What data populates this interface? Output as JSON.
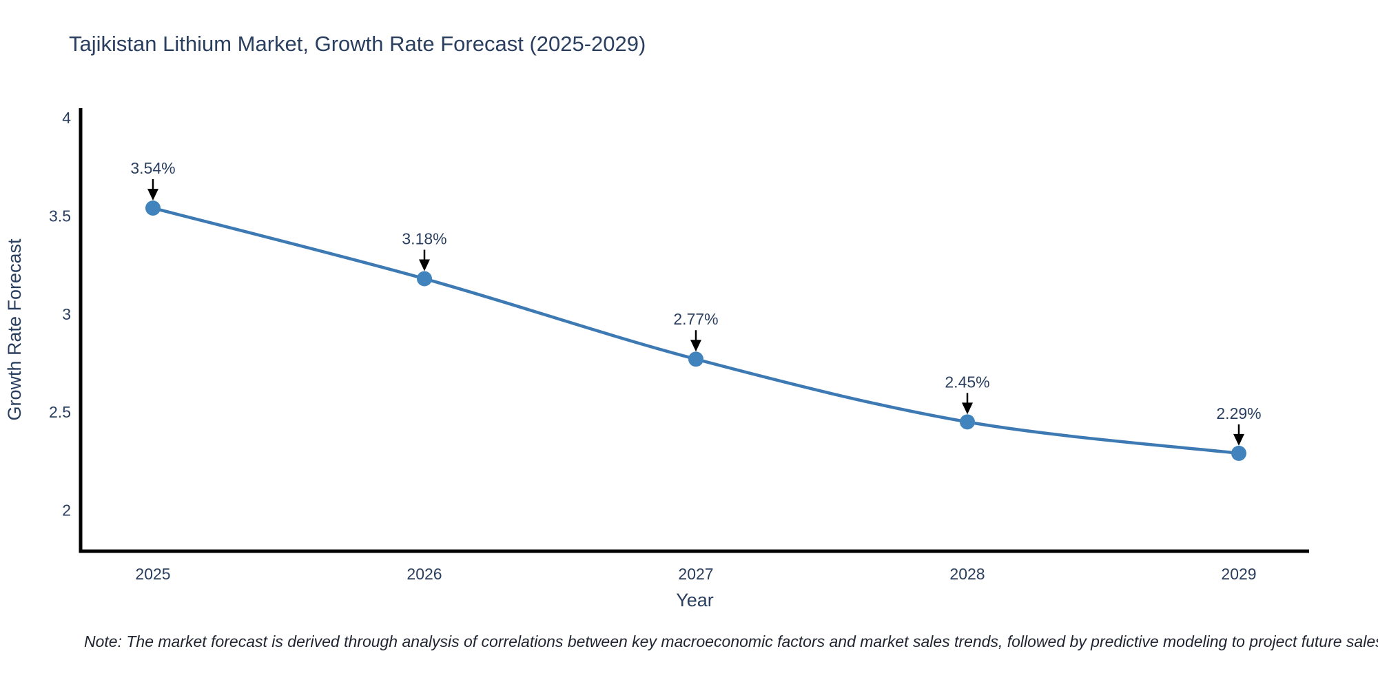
{
  "title": "Tajikistan Lithium Market, Growth Rate Forecast (2025-2029)",
  "note": "Note: The market forecast is derived through analysis of correlations between key macroeconomic factors and market sales trends, followed by predictive modeling to project future sales",
  "chart_data": {
    "type": "line",
    "title": "Tajikistan Lithium Market, Growth Rate Forecast (2025-2029)",
    "x": [
      2025,
      2026,
      2027,
      2028,
      2029
    ],
    "series": [
      {
        "name": "Growth Rate Forecast",
        "values": [
          3.54,
          3.18,
          2.77,
          2.45,
          2.29
        ]
      }
    ],
    "point_labels": [
      "3.54%",
      "3.18%",
      "2.77%",
      "2.45%",
      "2.29%"
    ],
    "xlabel": "Year",
    "ylabel": "Growth Rate Forecast",
    "yticks": [
      2,
      2.5,
      3,
      3.5,
      4
    ],
    "ylim": [
      1.79,
      4.04
    ],
    "grid": false,
    "legend": "none",
    "line_shape": "spline",
    "colors": {
      "line": "#3d79b3",
      "marker": "#4083bd",
      "axis": "#000000",
      "text": "#2a3f5f",
      "annotation_arrow": "#000000",
      "background": "#ffffff"
    }
  }
}
